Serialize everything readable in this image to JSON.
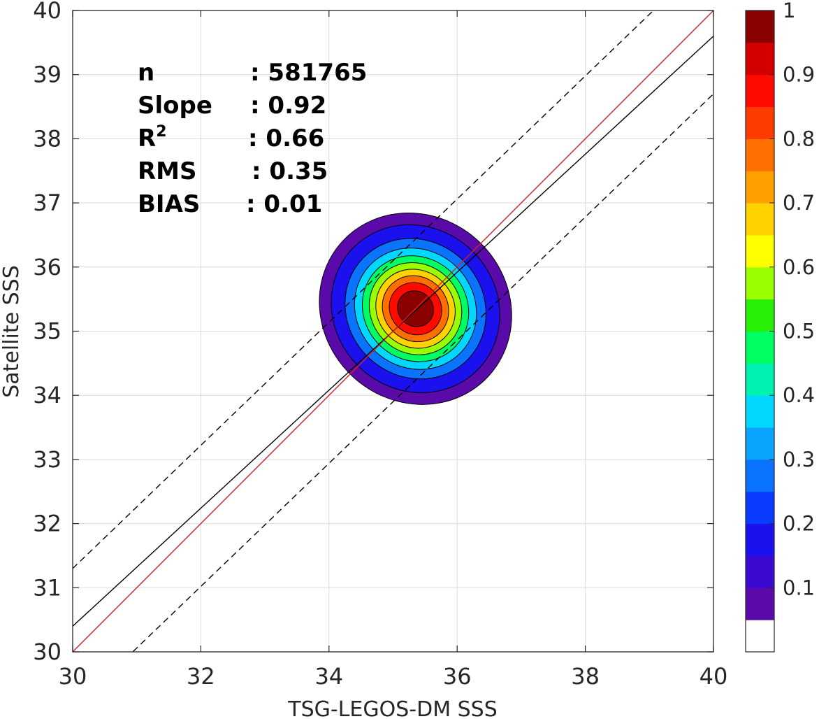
{
  "chart_data": {
    "type": "heatmap",
    "xlabel": "TSG-LEGOS-DM SSS",
    "ylabel": "Satellite SSS",
    "xlim": [
      30,
      40
    ],
    "ylim": [
      30,
      40
    ],
    "x_ticks": [
      "30",
      "32",
      "34",
      "36",
      "38",
      "40"
    ],
    "y_ticks": [
      "30",
      "31",
      "32",
      "33",
      "34",
      "35",
      "36",
      "37",
      "38",
      "39",
      "40"
    ],
    "grid": true,
    "density_peak": {
      "x": 35.35,
      "y": 35.35
    },
    "density_levels": [
      0.05,
      0.1,
      0.2,
      0.3,
      0.4,
      0.5,
      0.6,
      0.7,
      0.8,
      0.9
    ],
    "stats": [
      {
        "name": "n",
        "sup": "",
        "value": ": 581765"
      },
      {
        "name": "Slope",
        "sup": "",
        "value": ": 0.92"
      },
      {
        "name": "R",
        "sup": "2",
        "value": ": 0.66"
      },
      {
        "name": "RMS",
        "sup": "",
        "value": ": 0.35"
      },
      {
        "name": "BIAS",
        "sup": "",
        "value": ": 0.01"
      }
    ],
    "lines": {
      "one_to_one": {
        "x": [
          30,
          40
        ],
        "y": [
          30,
          40
        ],
        "color": "#d62020"
      },
      "fit": {
        "x": [
          30,
          40
        ],
        "y": [
          30.4,
          39.6
        ],
        "color": "#000000"
      },
      "upper_bound": {
        "x": [
          30,
          40
        ],
        "y": [
          31.3,
          40.9
        ],
        "style": "dashed"
      },
      "lower_bound": {
        "x": [
          30,
          40
        ],
        "y": [
          29.1,
          38.7
        ],
        "style": "dashed"
      }
    },
    "colorbar": {
      "range": [
        0,
        1
      ],
      "ticks": [
        "0.1",
        "0.2",
        "0.3",
        "0.4",
        "0.5",
        "0.6",
        "0.7",
        "0.8",
        "0.9",
        "1"
      ],
      "colors": [
        "#ffffff",
        "#5a0aa8",
        "#3a0ad0",
        "#1b10ee",
        "#0a3cff",
        "#0a73ff",
        "#0aa4ff",
        "#00d8ff",
        "#00f2b0",
        "#00ff60",
        "#27f006",
        "#9aff00",
        "#ffff00",
        "#ffd200",
        "#ff9f00",
        "#ff6e00",
        "#ff3c00",
        "#ff0a00",
        "#d40000",
        "#8b0000"
      ]
    }
  }
}
